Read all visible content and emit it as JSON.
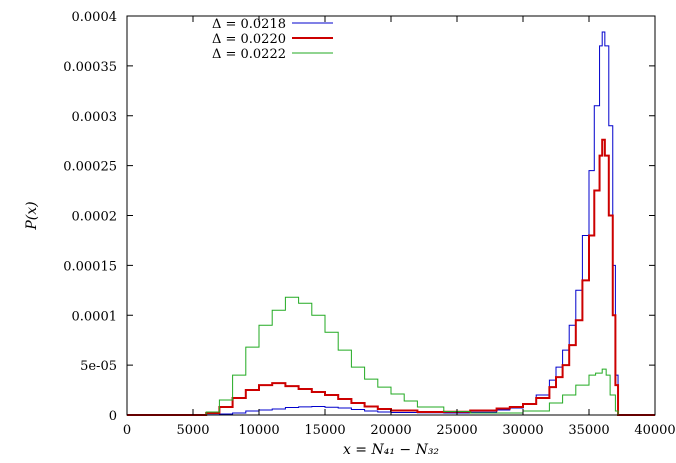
{
  "chart_data": {
    "type": "line",
    "title": "",
    "xlabel": "x = N_{41} − N_{32}",
    "xlabel_display": "x = N₄₁ − N₃₂",
    "ylabel": "P(x)",
    "xlim": [
      0,
      40000
    ],
    "ylim": [
      0,
      0.0004
    ],
    "grid": false,
    "legend_position": "top-left",
    "x_ticks": [
      {
        "value": 0,
        "label": "0"
      },
      {
        "value": 5000,
        "label": "5000"
      },
      {
        "value": 10000,
        "label": "10000"
      },
      {
        "value": 15000,
        "label": "15000"
      },
      {
        "value": 20000,
        "label": "20000"
      },
      {
        "value": 25000,
        "label": "25000"
      },
      {
        "value": 30000,
        "label": "30000"
      },
      {
        "value": 35000,
        "label": "35000"
      },
      {
        "value": 40000,
        "label": "40000"
      }
    ],
    "y_ticks": [
      {
        "value": 0,
        "label": "0"
      },
      {
        "value": 5e-05,
        "label": "5e-05"
      },
      {
        "value": 0.0001,
        "label": "0.0001"
      },
      {
        "value": 0.00015,
        "label": "0.00015"
      },
      {
        "value": 0.0002,
        "label": "0.0002"
      },
      {
        "value": 0.00025,
        "label": "0.00025"
      },
      {
        "value": 0.0003,
        "label": "0.0003"
      },
      {
        "value": 0.00035,
        "label": "0.00035"
      },
      {
        "value": 0.0004,
        "label": "0.0004"
      }
    ],
    "series": [
      {
        "name": "Δ = 0.0218",
        "color": "#0000cc",
        "line_width": 1,
        "x": [
          0,
          5000,
          6000,
          7000,
          8000,
          9000,
          10000,
          11000,
          12000,
          13000,
          14000,
          15000,
          16000,
          17000,
          18000,
          19000,
          20000,
          22000,
          24000,
          26000,
          28000,
          29000,
          30000,
          31000,
          32000,
          32500,
          33000,
          33500,
          34000,
          34500,
          35000,
          35400,
          35800,
          36000,
          36200,
          36500,
          36800,
          37000,
          37200,
          38000,
          40000
        ],
        "y": [
          0,
          0,
          2e-07,
          1e-06,
          2e-06,
          4e-06,
          5e-06,
          6e-06,
          7.5e-06,
          8.2e-06,
          8.5e-06,
          7.8e-06,
          7e-06,
          5.5e-06,
          4e-06,
          3e-06,
          2.5e-06,
          2.2e-06,
          2e-06,
          2.8e-06,
          5e-06,
          7e-06,
          1.1e-05,
          2e-05,
          3.5e-05,
          4.8e-05,
          6.5e-05,
          9e-05,
          0.000125,
          0.00018,
          0.000245,
          0.00031,
          0.00037,
          0.000384,
          0.00037,
          0.00029,
          0.00015,
          4e-05,
          0,
          0,
          0
        ]
      },
      {
        "name": "Δ = 0.0220",
        "color": "#cc0000",
        "line_width": 2,
        "x": [
          0,
          5000,
          6000,
          7000,
          8000,
          9000,
          10000,
          11000,
          12000,
          13000,
          14000,
          15000,
          16000,
          17000,
          18000,
          19000,
          20000,
          22000,
          24000,
          26000,
          28000,
          29000,
          30000,
          31000,
          32000,
          32500,
          33000,
          33500,
          34000,
          34500,
          35000,
          35400,
          35800,
          36000,
          36200,
          36500,
          36800,
          37000,
          37200,
          38000,
          40000
        ],
        "y": [
          0,
          0,
          2e-06,
          8e-06,
          1.7e-05,
          2.5e-05,
          3e-05,
          3.2e-05,
          2.9e-05,
          2.6e-05,
          2.3e-05,
          2e-05,
          1.6e-05,
          1.2e-05,
          8.5e-06,
          6e-06,
          4.5e-06,
          3e-06,
          3.2e-06,
          4.5e-06,
          6.5e-06,
          8e-06,
          1.1e-05,
          1.7e-05,
          2.8e-05,
          3.8e-05,
          5e-05,
          7e-05,
          9.5e-05,
          0.000135,
          0.00018,
          0.000225,
          0.00026,
          0.000276,
          0.00026,
          0.0002,
          0.0001,
          3e-05,
          0,
          0,
          0
        ]
      },
      {
        "name": "Δ = 0.0222",
        "color": "#22aa22",
        "line_width": 1,
        "x": [
          0,
          5000,
          6000,
          7000,
          8000,
          9000,
          10000,
          11000,
          12000,
          13000,
          14000,
          15000,
          16000,
          17000,
          18000,
          19000,
          20000,
          21000,
          22000,
          24000,
          26000,
          28000,
          30000,
          32000,
          33000,
          34000,
          35000,
          35500,
          36000,
          36300,
          36600,
          37000,
          37200,
          38000,
          40000
        ],
        "y": [
          0,
          0,
          3e-06,
          1.5e-05,
          4e-05,
          6.8e-05,
          9e-05,
          0.000105,
          0.000118,
          0.000112,
          0.0001,
          8.3e-05,
          6.5e-05,
          4.8e-05,
          3.6e-05,
          2.8e-05,
          2.1e-05,
          1.4e-05,
          8e-06,
          3.5e-06,
          2e-06,
          2e-06,
          4e-06,
          1.2e-05,
          2e-05,
          3e-05,
          4e-05,
          4.2e-05,
          4.6e-05,
          4e-05,
          2e-05,
          4e-06,
          0,
          0,
          0
        ]
      }
    ]
  }
}
